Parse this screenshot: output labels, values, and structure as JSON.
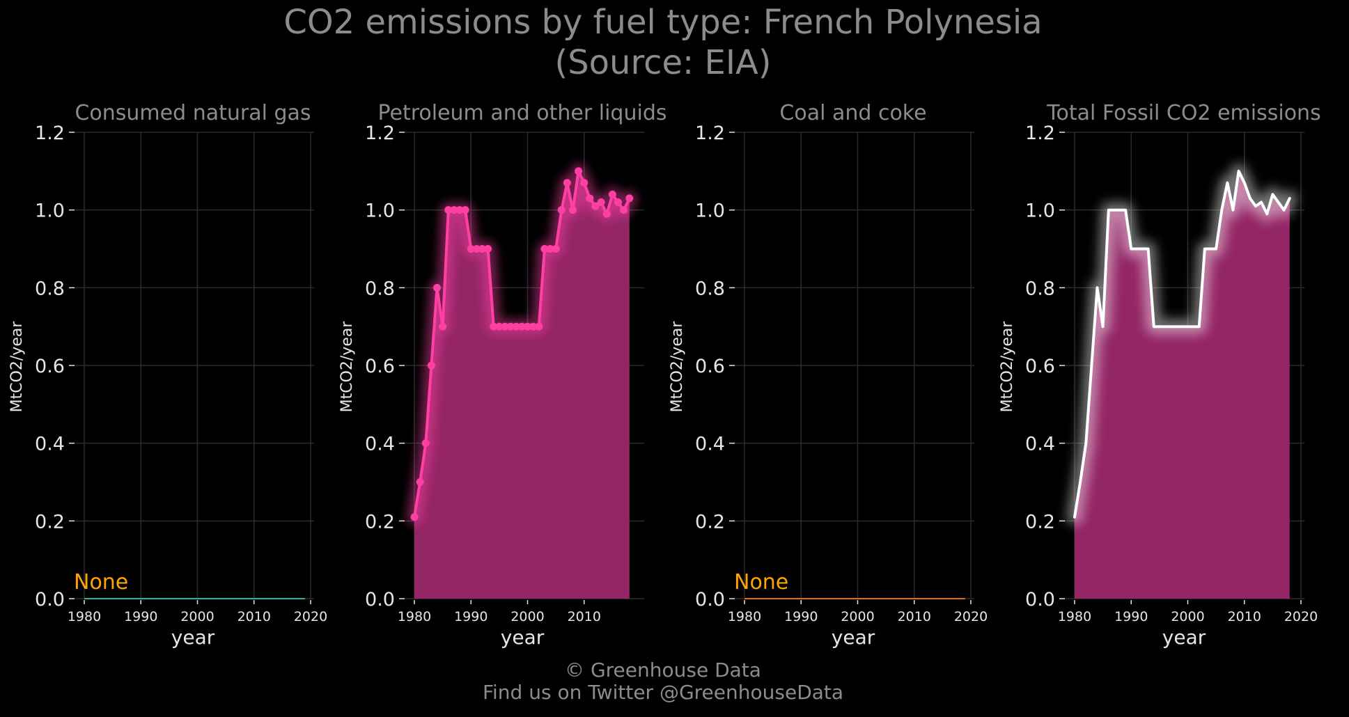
{
  "figure": {
    "title_line1": "CO2 emissions by fuel type: French Polynesia",
    "title_line2": "(Source: EIA)",
    "footer_line1": "© Greenhouse Data",
    "footer_line2": "Find us on Twitter @GreenhouseData"
  },
  "colors": {
    "background": "#000000",
    "title_text": "#8c8c8c",
    "tick_text": "#e6e6e6",
    "grid": "#2b2b2b",
    "petroleum": "#ff3fa4",
    "petroleum_fill": "#a0286e",
    "total_line": "#ffffff",
    "natural_gas_line": "#19b9b0",
    "coal_line": "#e0700f",
    "none_label": "#ffa500"
  },
  "chart_data": [
    {
      "type": "area",
      "title": "Consumed natural gas",
      "xlabel": "year",
      "ylabel": "MtCO2/year",
      "xlim": [
        1980,
        2020
      ],
      "ylim": [
        0,
        1.2
      ],
      "xticks": [
        1980,
        1990,
        2000,
        2010,
        2020
      ],
      "yticks": [
        0.0,
        0.2,
        0.4,
        0.6,
        0.8,
        1.0,
        1.2
      ],
      "grid": true,
      "annotation": "None",
      "series": [
        {
          "x": [
            1980,
            2019
          ],
          "y": [
            0,
            0
          ],
          "color": "#19b9b0"
        }
      ]
    },
    {
      "type": "area",
      "title": "Petroleum and other liquids",
      "xlabel": "year",
      "ylabel": "MtCO2/year",
      "xlim": [
        1980,
        2020
      ],
      "ylim": [
        0,
        1.2
      ],
      "xticks": [
        1980,
        1990,
        2000,
        2010
      ],
      "yticks": [
        0.0,
        0.2,
        0.4,
        0.6,
        0.8,
        1.0,
        1.2
      ],
      "grid": true,
      "series": [
        {
          "x": [
            1980,
            1981,
            1982,
            1983,
            1984,
            1985,
            1986,
            1987,
            1988,
            1989,
            1990,
            1991,
            1992,
            1993,
            1994,
            1995,
            1996,
            1997,
            1998,
            1999,
            2000,
            2001,
            2002,
            2003,
            2004,
            2005,
            2006,
            2007,
            2008,
            2009,
            2010,
            2011,
            2012,
            2013,
            2014,
            2015,
            2016,
            2017,
            2018
          ],
          "y": [
            0.21,
            0.3,
            0.4,
            0.6,
            0.8,
            0.7,
            1.0,
            1.0,
            1.0,
            1.0,
            0.9,
            0.9,
            0.9,
            0.9,
            0.7,
            0.7,
            0.7,
            0.7,
            0.7,
            0.7,
            0.7,
            0.7,
            0.7,
            0.9,
            0.9,
            0.9,
            1.0,
            1.07,
            1.0,
            1.1,
            1.07,
            1.03,
            1.01,
            1.02,
            0.99,
            1.04,
            1.02,
            1.0,
            1.03
          ],
          "color": "#ff3fa4",
          "markers": true
        }
      ]
    },
    {
      "type": "area",
      "title": "Coal and coke",
      "xlabel": "year",
      "ylabel": "MtCO2/year",
      "xlim": [
        1980,
        2020
      ],
      "ylim": [
        0,
        1.2
      ],
      "xticks": [
        1980,
        1990,
        2000,
        2010,
        2020
      ],
      "yticks": [
        0.0,
        0.2,
        0.4,
        0.6,
        0.8,
        1.0,
        1.2
      ],
      "grid": true,
      "annotation": "None",
      "series": [
        {
          "x": [
            1980,
            2019
          ],
          "y": [
            0,
            0
          ],
          "color": "#e0700f"
        }
      ]
    },
    {
      "type": "area",
      "title": "Total Fossil CO2 emissions",
      "xlabel": "year",
      "ylabel": "MtCO2/year",
      "xlim": [
        1980,
        2020
      ],
      "ylim": [
        0,
        1.2
      ],
      "xticks": [
        1980,
        1990,
        2000,
        2010,
        2020
      ],
      "yticks": [
        0.0,
        0.2,
        0.4,
        0.6,
        0.8,
        1.0,
        1.2
      ],
      "grid": true,
      "series": [
        {
          "x": [
            1980,
            1981,
            1982,
            1983,
            1984,
            1985,
            1986,
            1987,
            1988,
            1989,
            1990,
            1991,
            1992,
            1993,
            1994,
            1995,
            1996,
            1997,
            1998,
            1999,
            2000,
            2001,
            2002,
            2003,
            2004,
            2005,
            2006,
            2007,
            2008,
            2009,
            2010,
            2011,
            2012,
            2013,
            2014,
            2015,
            2016,
            2017,
            2018
          ],
          "y": [
            0.21,
            0.3,
            0.4,
            0.6,
            0.8,
            0.7,
            1.0,
            1.0,
            1.0,
            1.0,
            0.9,
            0.9,
            0.9,
            0.9,
            0.7,
            0.7,
            0.7,
            0.7,
            0.7,
            0.7,
            0.7,
            0.7,
            0.7,
            0.9,
            0.9,
            0.9,
            1.0,
            1.07,
            1.0,
            1.1,
            1.07,
            1.03,
            1.01,
            1.02,
            0.99,
            1.04,
            1.02,
            1.0,
            1.03
          ],
          "color": "#ffffff",
          "markers": false,
          "fill": "#a0286e"
        }
      ]
    }
  ]
}
